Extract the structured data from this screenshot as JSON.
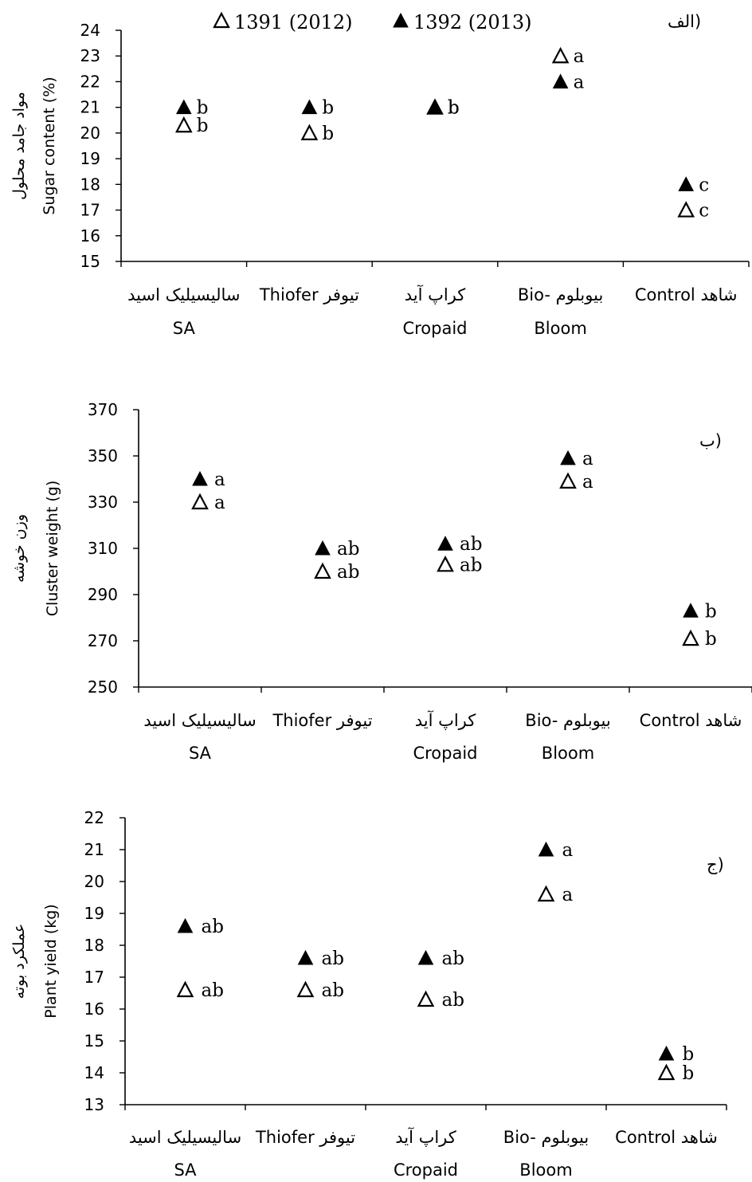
{
  "legend": {
    "open_label": "1391 (2012)",
    "filled_label": "1392 (2013)"
  },
  "categories": [
    {
      "fa": "سالیسیلیک اسید",
      "en": "SA"
    },
    {
      "fa": "تیوفر",
      "en": "Thiofer"
    },
    {
      "fa": "کراپ آید",
      "en": "Cropaid"
    },
    {
      "fa": "بیوبلوم",
      "en": "Bio-Bloom",
      "en1": "Bio-",
      "en2": "Bloom"
    },
    {
      "fa": "شاهد",
      "en": "Control"
    }
  ],
  "chart_data": [
    {
      "type": "scatter",
      "panel_tag": "الف)",
      "ylabel_fa": "مواد جامد محلول",
      "ylabel_en": "Sugar content (%)",
      "ylim": [
        15,
        24
      ],
      "yticks": [
        15,
        16,
        17,
        18,
        19,
        20,
        21,
        22,
        23,
        24
      ],
      "categories": [
        "SA",
        "Thiofer",
        "Cropaid",
        "Bio-Bloom",
        "Control"
      ],
      "series": [
        {
          "name": "1391 (2012)",
          "marker": "open-triangle",
          "values": [
            20.3,
            20.0,
            21.0,
            23.0,
            17.0
          ],
          "letters": [
            "b",
            "b",
            "b",
            "a",
            "c"
          ]
        },
        {
          "name": "1392 (2013)",
          "marker": "filled-triangle",
          "values": [
            21.0,
            21.0,
            21.0,
            22.0,
            18.0
          ],
          "letters": [
            "b",
            "b",
            "b",
            "a",
            "c"
          ]
        }
      ],
      "legend_position": "top"
    },
    {
      "type": "scatter",
      "panel_tag": "ب)",
      "ylabel_fa": "وزن خوشه",
      "ylabel_en": "Cluster weight (g)",
      "ylim": [
        250,
        370
      ],
      "yticks": [
        250,
        270,
        290,
        310,
        330,
        350,
        370
      ],
      "categories": [
        "SA",
        "Thiofer",
        "Cropaid",
        "Bio-Bloom",
        "Control"
      ],
      "series": [
        {
          "name": "1391 (2012)",
          "marker": "open-triangle",
          "values": [
            330,
            300,
            303,
            339,
            271
          ],
          "letters": [
            "a",
            "ab",
            "ab",
            "a",
            "b"
          ]
        },
        {
          "name": "1392 (2013)",
          "marker": "filled-triangle",
          "values": [
            340,
            310,
            312,
            349,
            283
          ],
          "letters": [
            "a",
            "ab",
            "ab",
            "a",
            "b"
          ]
        }
      ]
    },
    {
      "type": "scatter",
      "panel_tag": "ج)",
      "ylabel_fa": "عملکرد بوته",
      "ylabel_en": "Plant yield (kg)",
      "ylim": [
        13,
        22
      ],
      "yticks": [
        13,
        14,
        15,
        16,
        17,
        18,
        19,
        20,
        21,
        22
      ],
      "categories": [
        "SA",
        "Thiofer",
        "Cropaid",
        "Bio-Bloom",
        "Control"
      ],
      "series": [
        {
          "name": "1391 (2012)",
          "marker": "open-triangle",
          "values": [
            16.6,
            16.6,
            16.3,
            19.6,
            14.0
          ],
          "letters": [
            "ab",
            "ab",
            "ab",
            "a",
            "b"
          ]
        },
        {
          "name": "1392 (2013)",
          "marker": "filled-triangle",
          "values": [
            18.6,
            17.6,
            17.6,
            21.0,
            14.6
          ],
          "letters": [
            "ab",
            "ab",
            "ab",
            "a",
            "b"
          ]
        }
      ]
    }
  ]
}
